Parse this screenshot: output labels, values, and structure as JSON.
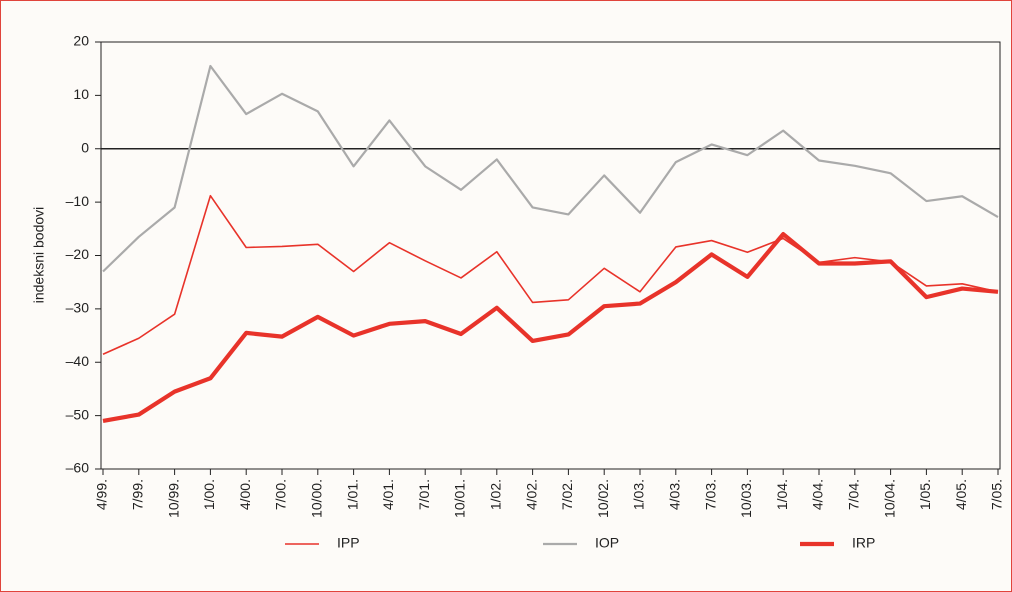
{
  "chart_data": {
    "type": "line",
    "ylabel": "indeksni bodovi",
    "categories": [
      "4/99.",
      "7/99.",
      "10/99.",
      "1/00.",
      "4/00.",
      "7/00.",
      "10/00.",
      "1/01.",
      "4/01.",
      "7/01.",
      "10/01.",
      "1/02.",
      "4/02.",
      "7/02.",
      "10/02.",
      "1/03.",
      "4/03.",
      "7/03.",
      "10/03.",
      "1/04.",
      "4/04.",
      "7/04.",
      "10/04.",
      "1/05.",
      "4/05.",
      "7/05."
    ],
    "series": [
      {
        "name": "IPP",
        "color": "#e8332a",
        "width": 1.6,
        "values": [
          -38.5,
          -35.5,
          -31,
          -8.8,
          -18.5,
          -18.3,
          -17.9,
          -23,
          -17.6,
          -21,
          -24.2,
          -19.3,
          -28.8,
          -28.3,
          -22.4,
          -26.8,
          -18.4,
          -17.2,
          -19.4,
          -16.8,
          -21.3,
          -20.4,
          -21.2,
          -25.7,
          -25.3,
          -26.8
        ]
      },
      {
        "name": "IOP",
        "color": "#aaaaaa",
        "width": 2.2,
        "values": [
          -23,
          -16.5,
          -11,
          15.5,
          6.5,
          10.3,
          7,
          -3.3,
          5.3,
          -3.3,
          -7.7,
          -2,
          -11,
          -12.3,
          -5,
          -12,
          -2.5,
          0.8,
          -1.2,
          3.4,
          -2.2,
          -3.2,
          -4.6,
          -9.8,
          -8.9,
          -12.8
        ]
      },
      {
        "name": "IRP",
        "color": "#e8332a",
        "width": 4.2,
        "values": [
          -51,
          -49.8,
          -45.5,
          -43,
          -34.5,
          -35.2,
          -31.5,
          -35,
          -32.8,
          -32.3,
          -34.7,
          -29.8,
          -36,
          -34.8,
          -29.5,
          -29,
          -25,
          -19.8,
          -24,
          -16,
          -21.5,
          -21.5,
          -21.1,
          -27.8,
          -26.2,
          -26.8
        ]
      }
    ],
    "ylim": [
      -60,
      20
    ],
    "yticks": [
      {
        "value": -60,
        "label": "–60"
      },
      {
        "value": -50,
        "label": "–50"
      },
      {
        "value": -40,
        "label": "–40"
      },
      {
        "value": -30,
        "label": "–30"
      },
      {
        "value": -20,
        "label": "–20"
      },
      {
        "value": -10,
        "label": "–10"
      },
      0,
      10,
      20
    ],
    "legend": "bottom"
  }
}
